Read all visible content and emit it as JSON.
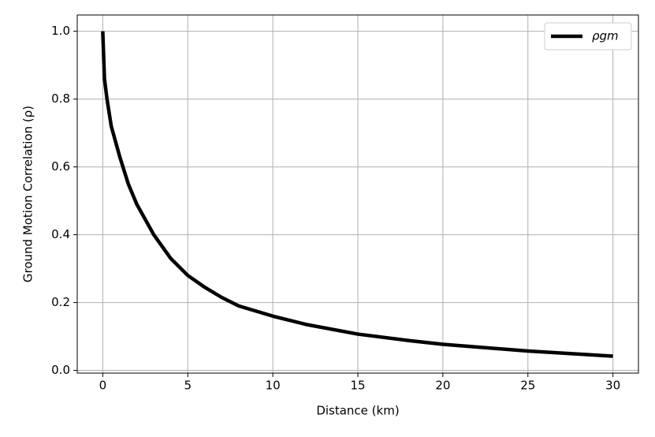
{
  "chart_data": {
    "type": "line",
    "x_label": "Distance (km)",
    "y_label": "Ground Motion Correlation (ρ)",
    "x": [
      0,
      0.1,
      0.25,
      0.5,
      1,
      1.5,
      2,
      3,
      4,
      5,
      6,
      7,
      8,
      10,
      12,
      15,
      18,
      20,
      25,
      30
    ],
    "series": [
      {
        "name": "ρgm",
        "color": "#000000",
        "values": [
          1.0,
          0.86,
          0.8,
          0.72,
          0.63,
          0.55,
          0.49,
          0.4,
          0.33,
          0.28,
          0.245,
          0.215,
          0.19,
          0.16,
          0.135,
          0.107,
          0.088,
          0.077,
          0.057,
          0.042
        ]
      }
    ],
    "xlim": [
      -1.5,
      31.5
    ],
    "xticks": [
      0,
      5,
      10,
      15,
      20,
      25,
      30
    ],
    "ylim": [
      -0.008,
      1.048
    ],
    "yticks": [
      {
        "value": 0,
        "label": "0.0"
      },
      {
        "value": 0.2,
        "label": "0.2"
      },
      {
        "value": 0.4,
        "label": "0.4"
      },
      {
        "value": 0.6,
        "label": "0.6"
      },
      {
        "value": 0.8,
        "label": "0.8"
      },
      {
        "value": 1,
        "label": "1.0"
      }
    ],
    "grid": true,
    "legend": "upper right"
  }
}
